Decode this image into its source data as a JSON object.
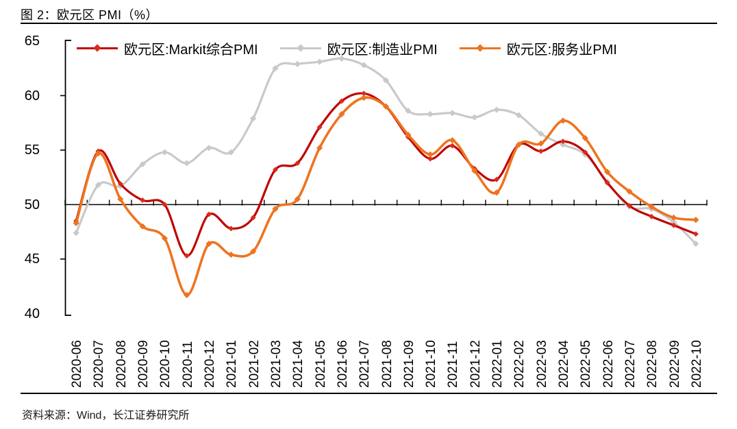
{
  "title": "图 2：欧元区 PMI（%）",
  "source": "资料来源：Wind，长江证券研究所",
  "colors": {
    "composite": "#C00000",
    "composite_marker": "#D92A1A",
    "manufacturing": "#C9C9C9",
    "services": "#ED7420",
    "axis": "#000000"
  },
  "chart_data": {
    "type": "line",
    "title": "欧元区 PMI（%）",
    "xlabel": "",
    "ylabel": "",
    "ylim": [
      40,
      65
    ],
    "yticks": [
      65,
      60,
      55,
      50,
      45,
      40
    ],
    "reference_line": 50,
    "grid": false,
    "smooth": true,
    "legend_position": "top",
    "x": [
      "2020-06",
      "2020-07",
      "2020-08",
      "2020-09",
      "2020-10",
      "2020-11",
      "2020-12",
      "2021-01",
      "2021-02",
      "2021-03",
      "2021-04",
      "2021-05",
      "2021-06",
      "2021-07",
      "2021-08",
      "2021-09",
      "2021-10",
      "2021-11",
      "2021-12",
      "2022-01",
      "2022-02",
      "2022-03",
      "2022-04",
      "2022-05",
      "2022-06",
      "2022-07",
      "2022-08",
      "2022-09",
      "2022-10"
    ],
    "series": [
      {
        "name": "欧元区:Markit综合PMI",
        "color_key": "composite",
        "values": [
          48.5,
          54.9,
          51.9,
          50.4,
          50.0,
          45.3,
          49.1,
          47.8,
          48.8,
          53.2,
          53.8,
          57.1,
          59.5,
          60.2,
          59.0,
          56.2,
          54.2,
          55.4,
          53.3,
          52.3,
          55.5,
          54.9,
          55.8,
          54.8,
          52.0,
          49.9,
          48.9,
          48.1,
          47.3
        ]
      },
      {
        "name": "欧元区:制造业PMI",
        "color_key": "manufacturing",
        "values": [
          47.4,
          51.8,
          51.7,
          53.7,
          54.8,
          53.8,
          55.2,
          54.8,
          57.9,
          62.5,
          62.9,
          63.1,
          63.4,
          62.8,
          61.4,
          58.6,
          58.3,
          58.4,
          58.0,
          58.7,
          58.2,
          56.5,
          55.5,
          54.6,
          52.1,
          49.8,
          49.6,
          48.4,
          46.4
        ]
      },
      {
        "name": "欧元区:服务业PMI",
        "color_key": "services",
        "values": [
          48.3,
          54.7,
          50.5,
          48.0,
          46.9,
          41.7,
          46.4,
          45.4,
          45.7,
          49.6,
          50.5,
          55.2,
          58.3,
          59.8,
          59.0,
          56.4,
          54.6,
          55.9,
          53.1,
          51.1,
          55.5,
          55.6,
          57.7,
          56.1,
          53.0,
          51.2,
          49.8,
          48.8,
          48.6
        ]
      }
    ]
  }
}
